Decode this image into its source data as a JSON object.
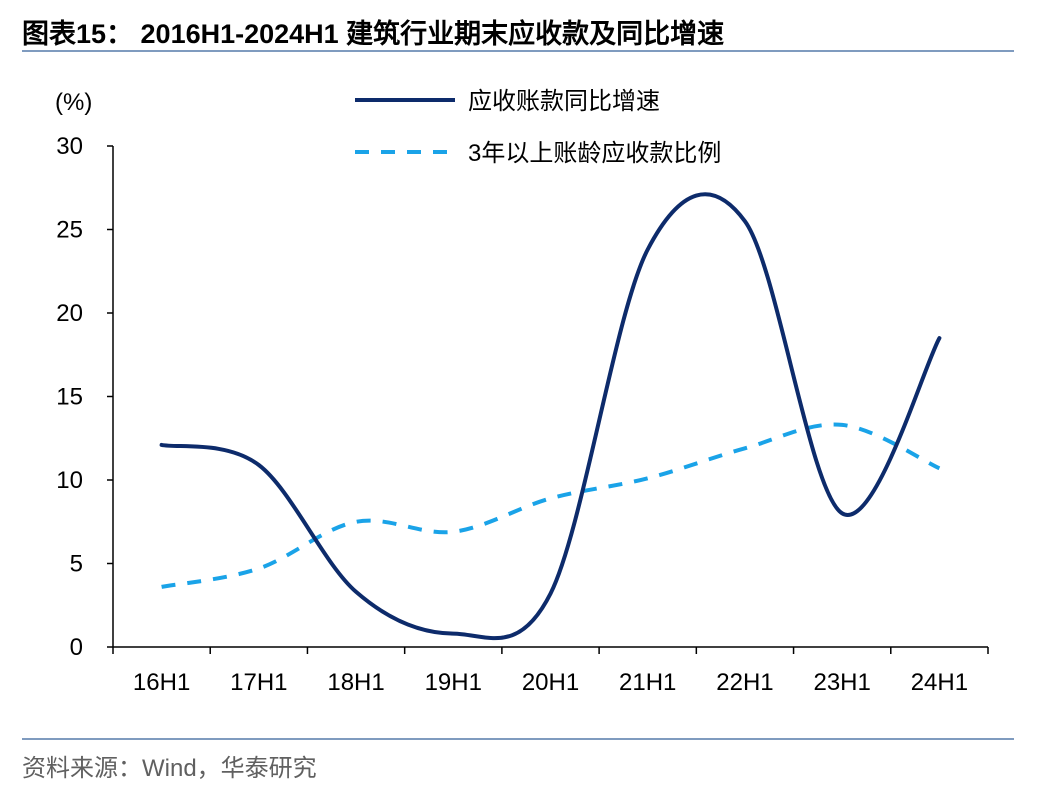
{
  "figure": {
    "title": "图表15： 2016H1-2024H1 建筑行业期末应收款及同比增速",
    "source": "资料来源：Wind，华泰研究"
  },
  "chart_data": {
    "type": "line",
    "ylabel": "(%)",
    "ylim": [
      0,
      30
    ],
    "yticks": [
      "0",
      "5",
      "10",
      "15",
      "20",
      "25",
      "30"
    ],
    "categories": [
      "16H1",
      "17H1",
      "18H1",
      "19H1",
      "20H1",
      "21H1",
      "22H1",
      "23H1",
      "24H1"
    ],
    "legend_position": "top",
    "grid": false,
    "series": [
      {
        "name": "应收账款同比增速",
        "style": "solid",
        "color": "#0d2b6b",
        "values": [
          12.1,
          10.9,
          3.3,
          0.8,
          3.2,
          23.8,
          25.5,
          8.0,
          18.5
        ]
      },
      {
        "name": "3年以上账龄应收款比例",
        "style": "dashed",
        "color": "#1aa3e8",
        "values": [
          3.6,
          4.7,
          7.5,
          6.9,
          8.9,
          10.1,
          11.9,
          13.3,
          10.7
        ]
      }
    ]
  }
}
